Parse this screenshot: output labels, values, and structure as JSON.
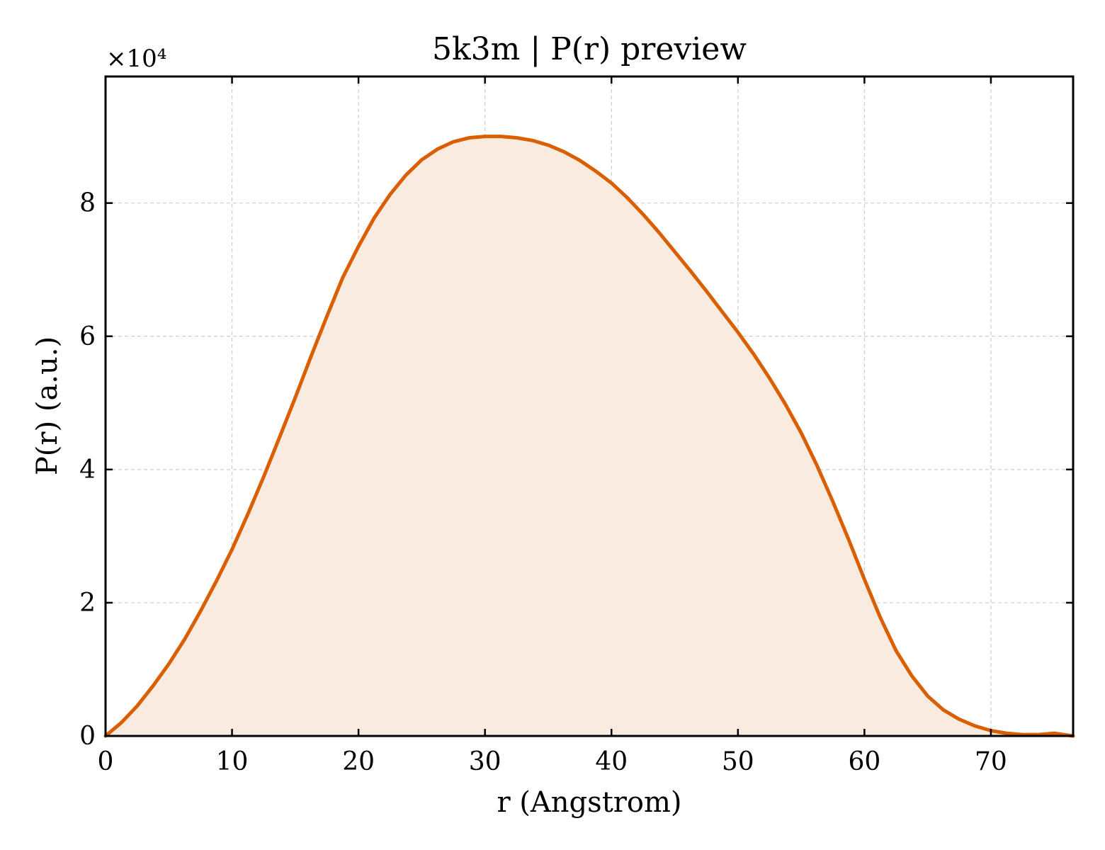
{
  "chart_data": {
    "type": "area",
    "title": "5k3m | P(r) preview",
    "xlabel": "r (Angstrom)",
    "ylabel": "P(r) (a.u.)",
    "y_offset_label": "×10⁴",
    "xlim": [
      0,
      76.5
    ],
    "ylim": [
      0,
      9.9
    ],
    "xticks": [
      0,
      10,
      20,
      30,
      40,
      50,
      60,
      70
    ],
    "yticks": [
      0,
      2,
      4,
      6,
      8
    ],
    "grid": true,
    "line_color": "#d95f02",
    "fill_color": "#f9ebe0",
    "series": [
      {
        "x": [
          0,
          1.25,
          2.5,
          3.75,
          5,
          6.25,
          7.5,
          8.75,
          10,
          11.25,
          12.5,
          13.75,
          15,
          16.25,
          17.5,
          18.75,
          20,
          21.25,
          22.5,
          23.75,
          25,
          26.25,
          27.5,
          28.75,
          30,
          31.25,
          32.5,
          33.75,
          35,
          36.25,
          37.5,
          38.75,
          40,
          41.25,
          42.5,
          43.75,
          45,
          46.25,
          47.5,
          48.75,
          50,
          51.25,
          52.5,
          53.75,
          55,
          56.25,
          57.5,
          58.75,
          60,
          61.25,
          62.5,
          63.75,
          65,
          66.25,
          67.5,
          68.75,
          70,
          71.25,
          72.5,
          73.75,
          75,
          76.5
        ],
        "y": [
          0,
          0.2,
          0.45,
          0.75,
          1.08,
          1.45,
          1.87,
          2.32,
          2.8,
          3.33,
          3.89,
          4.48,
          5.08,
          5.7,
          6.3,
          6.88,
          7.35,
          7.78,
          8.13,
          8.42,
          8.65,
          8.81,
          8.92,
          8.98,
          9.0,
          9.0,
          8.98,
          8.94,
          8.87,
          8.77,
          8.64,
          8.48,
          8.3,
          8.08,
          7.83,
          7.56,
          7.27,
          6.98,
          6.68,
          6.37,
          6.06,
          5.73,
          5.37,
          4.98,
          4.55,
          4.06,
          3.52,
          2.95,
          2.35,
          1.78,
          1.28,
          0.9,
          0.6,
          0.39,
          0.25,
          0.15,
          0.08,
          0.04,
          0.02,
          0.02,
          0.04,
          0.0
        ]
      }
    ]
  }
}
